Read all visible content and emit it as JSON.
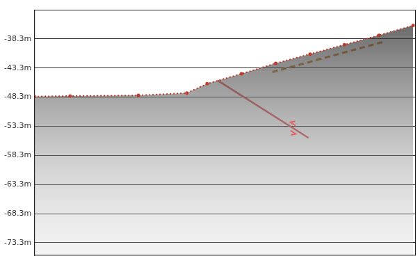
{
  "chart_data": {
    "type": "line",
    "tick_labels": "y",
    "grid": true,
    "xlim": [
      0,
      100
    ],
    "ylim": [
      -75.5,
      -33.3
    ],
    "yticks": [
      {
        "value": -38.3,
        "label": "-38.3m"
      },
      {
        "value": -43.3,
        "label": "-43.3m"
      },
      {
        "value": -48.3,
        "label": "-48.3m"
      },
      {
        "value": -53.3,
        "label": "-53.3m"
      },
      {
        "value": -58.3,
        "label": "-58.3m"
      },
      {
        "value": -63.3,
        "label": "-63.3m"
      },
      {
        "value": -68.3,
        "label": "-68.3m"
      },
      {
        "value": -73.3,
        "label": "-73.3m"
      }
    ],
    "series": [
      {
        "color": "#c0392b",
        "line_style": "dotted",
        "marker": "circle",
        "x": [
          0,
          9.4,
          27.3,
          40,
          45.3,
          54.3,
          63.3,
          72.3,
          81.3,
          90.3,
          99.3
        ],
        "values": [
          -48.2,
          -48.1,
          -48.0,
          -47.6,
          -46.0,
          -44.3,
          -42.5,
          -40.9,
          -39.3,
          -37.7,
          -36.0
        ]
      },
      {
        "color": "#e06666",
        "line_style": "solid",
        "marker": "none",
        "x": [
          48.0,
          71.9
        ],
        "values": [
          -45.4,
          -55.3
        ]
      },
      {
        "color": "#d4893a",
        "line_style": "dashed",
        "marker": "none",
        "x": [
          62.4,
          92.1
        ],
        "values": [
          -44.0,
          -38.7
        ]
      }
    ]
  }
}
